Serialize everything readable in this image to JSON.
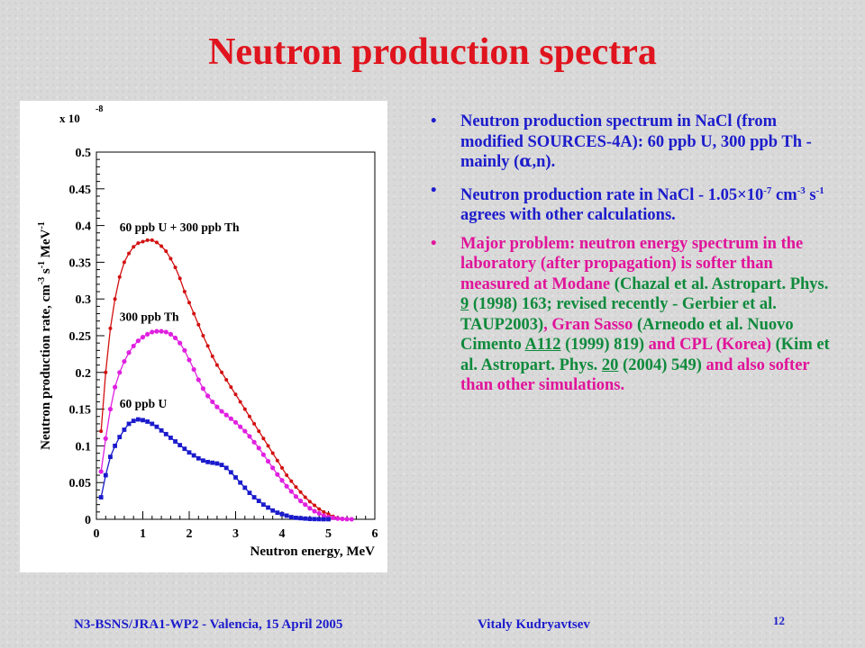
{
  "slide": {
    "title": "Neutron production spectra",
    "footer_left": "N3-BSNS/JRA1-WP2 - Valencia, 15 April 2005",
    "footer_author": "Vitaly Kudryavtsev",
    "page_number": "12"
  },
  "bullets": {
    "b1": {
      "text_a": "Neutron production spectrum in NaCl (from modified SOURCES-4A): 60 ppb U, 300 ppb Th - mainly (",
      "alpha": "α",
      "text_b": ",n)."
    },
    "b2": {
      "text_a": "Neutron production rate in NaCl - 1.05",
      "times": "×",
      "ten": "10",
      "exp1": "-7",
      "cm": " cm",
      "exp2": "-3",
      "s": " s",
      "exp3": "-1",
      "text_b": " agrees with other calculations."
    },
    "b3": {
      "p1": "Major problem: neutron energy spectrum in the laboratory (after propagation) is softer than measured at Modane",
      "p2": " (Chazal et al. Astropart. Phys. ",
      "p3": "9",
      "p4": " (1998) 163; revised recently - Gerbier et al. TAUP2003)",
      "p5": ", Gran Sasso ",
      "p6": "(Arneodo et al. Nuovo Cimento ",
      "p7": "A112",
      "p8": " (1999) 819)",
      "p9": " and CPL (Korea) ",
      "p10": "(Kim et al. Astropart. Phys. ",
      "p11": "20",
      "p12": " (2004) 549)",
      "p13": " and also softer than other simulations."
    }
  },
  "colors": {
    "title": "#e0141e",
    "blue_text": "#1c1ccc",
    "magenta_text": "#e0139a",
    "green_text": "#0f8a3c",
    "series_total": "#d21010",
    "series_th": "#e020e0",
    "series_u": "#1a1acc"
  },
  "chart_data": {
    "type": "line",
    "xlabel": "Neutron energy, MeV",
    "ylabel_parts": {
      "a": "Neutron production rate, cm",
      "e1": "-3",
      "b": " s",
      "e2": "-1",
      "c": " MeV",
      "e3": "-1"
    },
    "y_scale_label": "x 10",
    "y_scale_exp": "-8",
    "xlim": [
      0,
      6
    ],
    "ylim": [
      0,
      0.5
    ],
    "x_ticks": [
      "0",
      "1",
      "2",
      "3",
      "4",
      "5",
      "6"
    ],
    "y_ticks": [
      "0",
      "0.05",
      "0.1",
      "0.15",
      "0.2",
      "0.25",
      "0.3",
      "0.35",
      "0.4",
      "0.45",
      "0.5"
    ],
    "annotations": [
      "60 ppb U + 300 ppb Th",
      "300 ppb Th",
      "60 ppb U"
    ],
    "series": [
      {
        "color": "#d21010",
        "x": [
          0.1,
          0.2,
          0.3,
          0.4,
          0.5,
          0.6,
          0.7,
          0.8,
          0.9,
          1.0,
          1.1,
          1.2,
          1.3,
          1.4,
          1.5,
          1.6,
          1.7,
          1.8,
          1.9,
          2.0,
          2.1,
          2.2,
          2.3,
          2.4,
          2.5,
          2.6,
          2.7,
          2.8,
          2.9,
          3.0,
          3.1,
          3.2,
          3.3,
          3.4,
          3.5,
          3.6,
          3.7,
          3.8,
          3.9,
          4.0,
          4.1,
          4.2,
          4.3,
          4.4,
          4.5,
          4.6,
          4.7,
          4.8,
          4.9,
          5.0,
          5.1,
          5.2,
          5.3,
          5.4,
          5.5
        ],
        "y": [
          0.12,
          0.2,
          0.26,
          0.3,
          0.33,
          0.35,
          0.362,
          0.371,
          0.376,
          0.378,
          0.38,
          0.38,
          0.377,
          0.372,
          0.365,
          0.355,
          0.343,
          0.328,
          0.31,
          0.295,
          0.28,
          0.265,
          0.25,
          0.236,
          0.222,
          0.21,
          0.2,
          0.19,
          0.18,
          0.17,
          0.16,
          0.15,
          0.14,
          0.13,
          0.12,
          0.11,
          0.1,
          0.09,
          0.08,
          0.07,
          0.06,
          0.052,
          0.044,
          0.037,
          0.03,
          0.024,
          0.019,
          0.014,
          0.01,
          0.007,
          0.004,
          0.002,
          0.001,
          0.0005,
          0.0002
        ]
      },
      {
        "color": "#e020e0",
        "x": [
          0.1,
          0.2,
          0.3,
          0.4,
          0.5,
          0.6,
          0.7,
          0.8,
          0.9,
          1.0,
          1.1,
          1.2,
          1.3,
          1.4,
          1.5,
          1.6,
          1.7,
          1.8,
          1.9,
          2.0,
          2.1,
          2.2,
          2.3,
          2.4,
          2.5,
          2.6,
          2.7,
          2.8,
          2.9,
          3.0,
          3.1,
          3.2,
          3.3,
          3.4,
          3.5,
          3.6,
          3.7,
          3.8,
          3.9,
          4.0,
          4.1,
          4.2,
          4.3,
          4.4,
          4.5,
          4.6,
          4.7,
          4.8,
          4.9,
          5.0,
          5.1,
          5.2,
          5.3,
          5.4,
          5.5
        ],
        "y": [
          0.065,
          0.11,
          0.15,
          0.18,
          0.2,
          0.215,
          0.227,
          0.236,
          0.243,
          0.248,
          0.252,
          0.255,
          0.256,
          0.256,
          0.255,
          0.252,
          0.247,
          0.24,
          0.23,
          0.217,
          0.204,
          0.19,
          0.178,
          0.168,
          0.16,
          0.153,
          0.147,
          0.142,
          0.137,
          0.132,
          0.126,
          0.12,
          0.113,
          0.105,
          0.097,
          0.088,
          0.079,
          0.07,
          0.061,
          0.053,
          0.045,
          0.038,
          0.031,
          0.025,
          0.02,
          0.015,
          0.011,
          0.008,
          0.005,
          0.003,
          0.002,
          0.001,
          0.0005,
          0.0002,
          0.0001
        ]
      },
      {
        "color": "#1a1acc",
        "x": [
          0.1,
          0.2,
          0.3,
          0.4,
          0.5,
          0.6,
          0.7,
          0.8,
          0.9,
          1.0,
          1.1,
          1.2,
          1.3,
          1.4,
          1.5,
          1.6,
          1.7,
          1.8,
          1.9,
          2.0,
          2.1,
          2.2,
          2.3,
          2.4,
          2.5,
          2.6,
          2.7,
          2.8,
          2.9,
          3.0,
          3.1,
          3.2,
          3.3,
          3.4,
          3.5,
          3.6,
          3.7,
          3.8,
          3.9,
          4.0,
          4.1,
          4.2,
          4.3,
          4.4,
          4.5,
          4.6,
          4.7,
          4.8,
          4.9,
          5.0
        ],
        "y": [
          0.03,
          0.06,
          0.085,
          0.1,
          0.112,
          0.122,
          0.13,
          0.134,
          0.136,
          0.135,
          0.133,
          0.13,
          0.126,
          0.121,
          0.116,
          0.111,
          0.106,
          0.101,
          0.096,
          0.091,
          0.087,
          0.083,
          0.08,
          0.078,
          0.077,
          0.076,
          0.074,
          0.07,
          0.064,
          0.057,
          0.05,
          0.043,
          0.036,
          0.03,
          0.025,
          0.02,
          0.016,
          0.012,
          0.009,
          0.007,
          0.005,
          0.003,
          0.002,
          0.0015,
          0.001,
          0.0005,
          0.0003,
          0.0002,
          0.0001,
          0.0001
        ]
      }
    ]
  }
}
